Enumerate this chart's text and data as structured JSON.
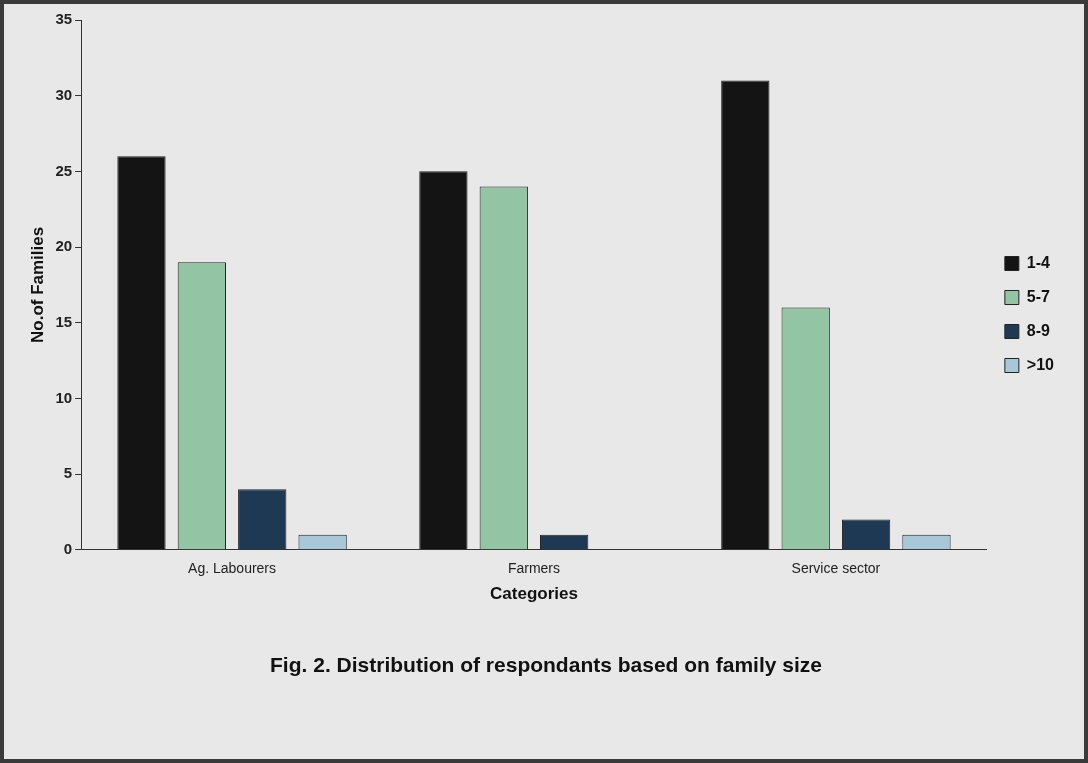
{
  "chart_data": {
    "type": "bar",
    "xlabel": "Categories",
    "ylabel": "No.of Families",
    "categories": [
      "Ag. Labourers",
      "Farmers",
      "Service sector"
    ],
    "series": [
      {
        "name": "1-4",
        "color": "#141414",
        "values": [
          26,
          25,
          31
        ]
      },
      {
        "name": "5-7",
        "color": "#93c4a4",
        "values": [
          19,
          24,
          16
        ]
      },
      {
        "name": "8-9",
        "color": "#1d3954",
        "values": [
          4,
          1,
          2
        ]
      },
      {
        "name": ">10",
        "color": "#a8c8d8",
        "values": [
          1,
          0,
          1
        ]
      }
    ],
    "ylim": [
      0,
      35
    ],
    "yticks": [
      0,
      5,
      10,
      15,
      20,
      25,
      30,
      35
    ],
    "grid": false,
    "legend": "right",
    "annotations": [
      "Fig. 2. Distribution of respondants based on family size"
    ]
  }
}
